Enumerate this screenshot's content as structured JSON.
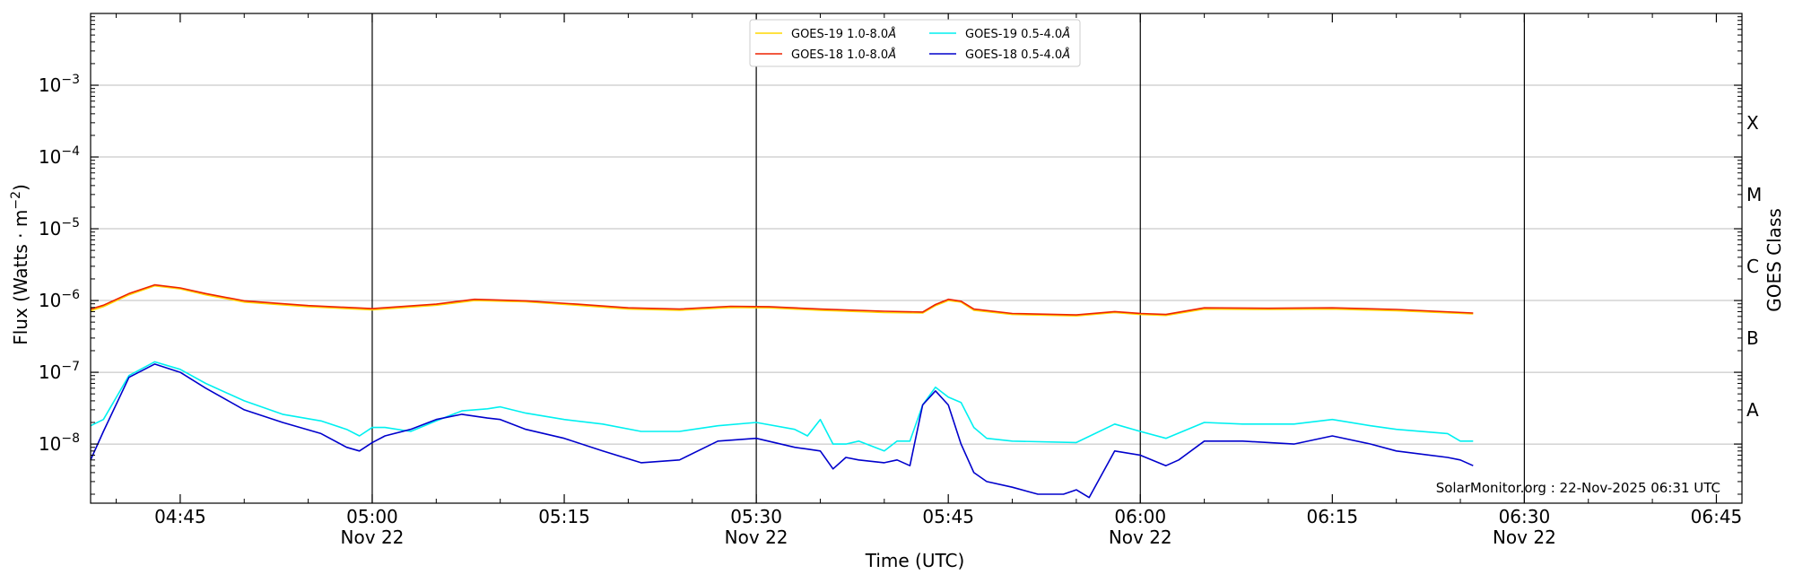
{
  "chart_data": {
    "type": "line",
    "xlabel": "Time (UTC)",
    "ylabel_main": "Flux (Watts · m",
    "ylabel_sup": "−2",
    "ylabel_close": ")",
    "y2label": "GOES Class",
    "yscale": "log",
    "xlim": [
      "04:38",
      "06:47"
    ],
    "ylim": [
      1.5e-09,
      0.01
    ],
    "grid": "horizontal",
    "legend_position": "top-center",
    "watermark": "SolarMonitor.org : 22-Nov-2025 06:31 UTC",
    "x_ticks": [
      {
        "t": "04:45",
        "label": "04:45",
        "date": ""
      },
      {
        "t": "05:00",
        "label": "05:00",
        "date": "Nov 22"
      },
      {
        "t": "05:15",
        "label": "05:15",
        "date": ""
      },
      {
        "t": "05:30",
        "label": "05:30",
        "date": "Nov 22"
      },
      {
        "t": "05:45",
        "label": "05:45",
        "date": ""
      },
      {
        "t": "06:00",
        "label": "06:00",
        "date": "Nov 22"
      },
      {
        "t": "06:15",
        "label": "06:15",
        "date": ""
      },
      {
        "t": "06:30",
        "label": "06:30",
        "date": "Nov 22"
      },
      {
        "t": "06:45",
        "label": "06:45",
        "date": ""
      }
    ],
    "y_ticks": [
      {
        "exp": -8
      },
      {
        "exp": -7
      },
      {
        "exp": -6
      },
      {
        "exp": -5
      },
      {
        "exp": -4
      },
      {
        "exp": -3
      }
    ],
    "tick_base": "10",
    "vlines": [
      "05:00",
      "05:30",
      "06:00",
      "06:30"
    ],
    "goes_classes": [
      {
        "label": "A",
        "value": 3e-08
      },
      {
        "label": "B",
        "value": 3e-07
      },
      {
        "label": "C",
        "value": 3e-06
      },
      {
        "label": "M",
        "value": 3e-05
      },
      {
        "label": "X",
        "value": 0.0003
      }
    ],
    "series": [
      {
        "name": "GOES-19 1.0-8.0",
        "unit": "Å",
        "color": "#ffd700",
        "x": [
          "04:38",
          "04:39",
          "04:41",
          "04:43",
          "04:45",
          "04:47",
          "04:50",
          "04:55",
          "05:00",
          "05:05",
          "05:08",
          "05:12",
          "05:16",
          "05:20",
          "05:24",
          "05:28",
          "05:31",
          "05:35",
          "05:40",
          "05:43",
          "05:44",
          "05:45",
          "05:46",
          "05:47",
          "05:50",
          "05:55",
          "05:58",
          "06:00",
          "06:02",
          "06:05",
          "06:10",
          "06:15",
          "06:20",
          "06:26"
        ],
        "values": [
          7.2e-07,
          8.2e-07,
          1.2e-06,
          1.6e-06,
          1.45e-06,
          1.2e-06,
          9.5e-07,
          8.2e-07,
          7.4e-07,
          8.6e-07,
          1e-06,
          9.6e-07,
          8.6e-07,
          7.6e-07,
          7.3e-07,
          8e-07,
          7.9e-07,
          7.3e-07,
          6.8e-07,
          6.7e-07,
          8.5e-07,
          1e-06,
          9.5e-07,
          7.3e-07,
          6.4e-07,
          6.1e-07,
          6.8e-07,
          6.4e-07,
          6.2e-07,
          7.6e-07,
          7.5e-07,
          7.6e-07,
          7.2e-07,
          6.5e-07
        ]
      },
      {
        "name": "GOES-18 1.0-8.0",
        "unit": "Å",
        "color": "#ee2200",
        "x": [
          "04:38",
          "04:39",
          "04:41",
          "04:43",
          "04:45",
          "04:47",
          "04:50",
          "04:55",
          "05:00",
          "05:05",
          "05:08",
          "05:12",
          "05:16",
          "05:20",
          "05:24",
          "05:28",
          "05:31",
          "05:35",
          "05:40",
          "05:43",
          "05:44",
          "05:45",
          "05:46",
          "05:47",
          "05:50",
          "05:55",
          "05:58",
          "06:00",
          "06:02",
          "06:05",
          "06:10",
          "06:15",
          "06:20",
          "06:26"
        ],
        "values": [
          7.6e-07,
          8.6e-07,
          1.25e-06,
          1.65e-06,
          1.5e-06,
          1.25e-06,
          9.9e-07,
          8.5e-07,
          7.7e-07,
          8.9e-07,
          1.04e-06,
          9.9e-07,
          8.9e-07,
          7.9e-07,
          7.6e-07,
          8.3e-07,
          8.2e-07,
          7.6e-07,
          7.1e-07,
          6.9e-07,
          8.8e-07,
          1.04e-06,
          9.8e-07,
          7.6e-07,
          6.6e-07,
          6.3e-07,
          7e-07,
          6.6e-07,
          6.4e-07,
          7.9e-07,
          7.8e-07,
          7.9e-07,
          7.5e-07,
          6.7e-07
        ]
      },
      {
        "name": "GOES-19 0.5-4.0",
        "unit": "Å",
        "color": "#00f0f0",
        "x": [
          "04:38",
          "04:39",
          "04:41",
          "04:43",
          "04:45",
          "04:47",
          "04:50",
          "04:53",
          "04:56",
          "04:58",
          "04:59",
          "05:00",
          "05:01",
          "05:03",
          "05:05",
          "05:07",
          "05:09",
          "05:10",
          "05:12",
          "05:15",
          "05:18",
          "05:21",
          "05:24",
          "05:27",
          "05:30",
          "05:33",
          "05:34",
          "05:35",
          "05:36",
          "05:37",
          "05:38",
          "05:40",
          "05:41",
          "05:42",
          "05:43",
          "05:44",
          "05:45",
          "05:46",
          "05:47",
          "05:48",
          "05:50",
          "05:55",
          "05:58",
          "06:00",
          "06:02",
          "06:05",
          "06:08",
          "06:12",
          "06:15",
          "06:18",
          "06:20",
          "06:24",
          "06:25",
          "06:26"
        ],
        "values": [
          1.8e-08,
          2.2e-08,
          9e-08,
          1.4e-07,
          1.1e-07,
          7e-08,
          4e-08,
          2.6e-08,
          2.1e-08,
          1.6e-08,
          1.3e-08,
          1.7e-08,
          1.7e-08,
          1.5e-08,
          2.1e-08,
          2.9e-08,
          3.1e-08,
          3.3e-08,
          2.7e-08,
          2.2e-08,
          1.9e-08,
          1.5e-08,
          1.5e-08,
          1.8e-08,
          2e-08,
          1.6e-08,
          1.3e-08,
          2.2e-08,
          1e-08,
          1e-08,
          1.1e-08,
          8e-09,
          1.1e-08,
          1.1e-08,
          3.5e-08,
          6.2e-08,
          4.5e-08,
          3.8e-08,
          1.7e-08,
          1.2e-08,
          1.1e-08,
          1.05e-08,
          1.9e-08,
          1.5e-08,
          1.2e-08,
          2e-08,
          1.9e-08,
          1.9e-08,
          2.2e-08,
          1.8e-08,
          1.6e-08,
          1.4e-08,
          1.1e-08,
          1.1e-08
        ]
      },
      {
        "name": "GOES-18 0.5-4.0",
        "unit": "Å",
        "color": "#0000cc",
        "x": [
          "04:38",
          "04:39",
          "04:41",
          "04:43",
          "04:45",
          "04:47",
          "04:50",
          "04:53",
          "04:56",
          "04:58",
          "04:59",
          "05:00",
          "05:01",
          "05:03",
          "05:05",
          "05:07",
          "05:09",
          "05:10",
          "05:12",
          "05:15",
          "05:18",
          "05:21",
          "05:24",
          "05:27",
          "05:30",
          "05:33",
          "05:34",
          "05:35",
          "05:36",
          "05:37",
          "05:38",
          "05:40",
          "05:41",
          "05:42",
          "05:43",
          "05:44",
          "05:45",
          "05:46",
          "05:47",
          "05:48",
          "05:50",
          "05:52",
          "05:54",
          "05:55",
          "05:56",
          "05:58",
          "06:00",
          "06:02",
          "06:03",
          "06:05",
          "06:08",
          "06:12",
          "06:15",
          "06:18",
          "06:20",
          "06:24",
          "06:25",
          "06:26"
        ],
        "values": [
          6e-09,
          1.5e-08,
          8.5e-08,
          1.3e-07,
          1e-07,
          6e-08,
          3e-08,
          2e-08,
          1.4e-08,
          9e-09,
          8e-09,
          1.05e-08,
          1.3e-08,
          1.6e-08,
          2.2e-08,
          2.6e-08,
          2.3e-08,
          2.2e-08,
          1.6e-08,
          1.2e-08,
          8e-09,
          5.5e-09,
          6e-09,
          1.1e-08,
          1.2e-08,
          9e-09,
          8.5e-09,
          8e-09,
          4.5e-09,
          6.5e-09,
          6e-09,
          5.5e-09,
          6e-09,
          5e-09,
          3.5e-08,
          5.5e-08,
          3.5e-08,
          1e-08,
          4e-09,
          3e-09,
          2.5e-09,
          2e-09,
          2e-09,
          2.3e-09,
          1.8e-09,
          8e-09,
          7e-09,
          5e-09,
          6e-09,
          1.1e-08,
          1.1e-08,
          1e-08,
          1.3e-08,
          1e-08,
          8e-09,
          6.5e-09,
          6e-09,
          5e-09
        ]
      }
    ]
  }
}
